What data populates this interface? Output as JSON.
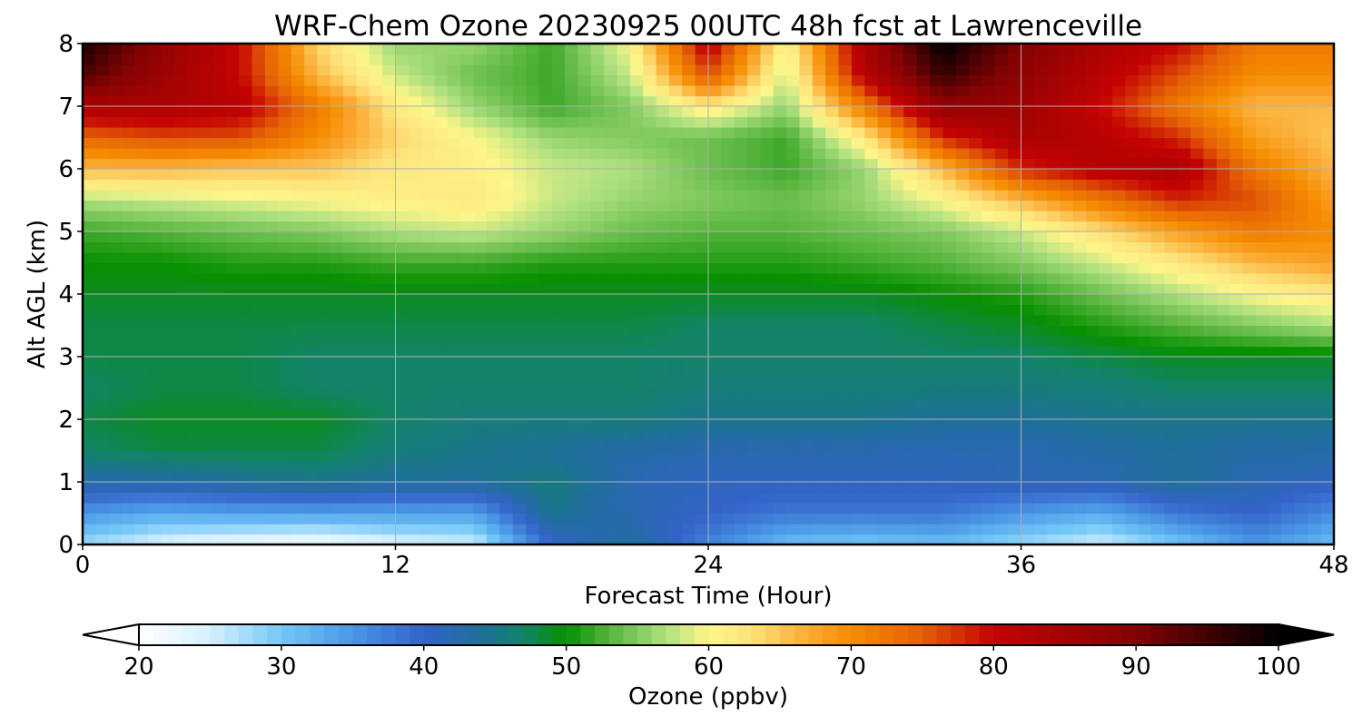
{
  "chart_data": {
    "type": "heatmap",
    "title": "WRF-Chem Ozone  20230925 00UTC 48h fcst at Lawrenceville",
    "xlabel": "Forecast Time (Hour)",
    "ylabel": "Alt AGL (km)",
    "xlim": [
      0,
      48
    ],
    "ylim": [
      0,
      8
    ],
    "xticks": [
      "0",
      "12",
      "24",
      "36",
      "48"
    ],
    "yticks": [
      "0",
      "1",
      "2",
      "3",
      "4",
      "5",
      "6",
      "7",
      "8"
    ],
    "grid": true,
    "x": [
      0,
      3,
      6,
      9,
      12,
      15,
      18,
      21,
      24,
      27,
      30,
      33,
      36,
      39,
      42,
      45,
      48
    ],
    "y": [
      0,
      0.5,
      1,
      1.5,
      2,
      2.5,
      3,
      3.5,
      4,
      4.5,
      5,
      5.5,
      6,
      6.5,
      7,
      7.5,
      8
    ],
    "z": [
      [
        28,
        24,
        22,
        21,
        24,
        25,
        40,
        44,
        37,
        31,
        30,
        31,
        28,
        25,
        30,
        35,
        31
      ],
      [
        35,
        33,
        34,
        34,
        34,
        34,
        45,
        42,
        40,
        38,
        38,
        38,
        35,
        33,
        38,
        40,
        36
      ],
      [
        43,
        43,
        44,
        45,
        44,
        44,
        46,
        42,
        41,
        41,
        41,
        41,
        42,
        42,
        44,
        42,
        41
      ],
      [
        47,
        48,
        48,
        48,
        46,
        45,
        44,
        43,
        42,
        42,
        42,
        42,
        42,
        43,
        44,
        43,
        43
      ],
      [
        48,
        49,
        49,
        49,
        47,
        46,
        46,
        46,
        45,
        45,
        45,
        44,
        44,
        45,
        45,
        45,
        45
      ],
      [
        47,
        48,
        48,
        47,
        47,
        47,
        47,
        47,
        46,
        46,
        46,
        46,
        46,
        46,
        47,
        47,
        47
      ],
      [
        48,
        48,
        48,
        47,
        47,
        47,
        47,
        47,
        47,
        47,
        47,
        47,
        47,
        48,
        49,
        49,
        49
      ],
      [
        48,
        48,
        48,
        48,
        48,
        48,
        48,
        48,
        47,
        47,
        47,
        48,
        49,
        51,
        53,
        55,
        57
      ],
      [
        49,
        49,
        49,
        49,
        49,
        49,
        49,
        49,
        49,
        49,
        49,
        50,
        51,
        54,
        57,
        60,
        62
      ],
      [
        50,
        50,
        51,
        51,
        52,
        52,
        51,
        51,
        51,
        51,
        52,
        53,
        55,
        58,
        62,
        66,
        68
      ],
      [
        52,
        53,
        54,
        55,
        57,
        58,
        56,
        54,
        53,
        53,
        54,
        55,
        58,
        63,
        68,
        72,
        70
      ],
      [
        57,
        58,
        59,
        60,
        61,
        62,
        58,
        56,
        55,
        54,
        56,
        60,
        66,
        72,
        78,
        76,
        68
      ],
      [
        66,
        66,
        65,
        65,
        62,
        61,
        58,
        57,
        54,
        52,
        56,
        66,
        78,
        82,
        84,
        72,
        66
      ],
      [
        74,
        76,
        76,
        70,
        64,
        60,
        56,
        55,
        54,
        52,
        62,
        78,
        84,
        82,
        78,
        68,
        65
      ],
      [
        84,
        84,
        82,
        72,
        62,
        56,
        52,
        55,
        62,
        56,
        72,
        88,
        86,
        80,
        72,
        66,
        66
      ],
      [
        94,
        86,
        80,
        66,
        58,
        54,
        52,
        58,
        76,
        58,
        82,
        96,
        88,
        82,
        76,
        70,
        70
      ],
      [
        98,
        88,
        80,
        64,
        56,
        56,
        52,
        60,
        82,
        60,
        84,
        100,
        90,
        84,
        80,
        72,
        72
      ]
    ],
    "colorbar": {
      "label": "Ozone  (ppbv)",
      "ticks": [
        "20",
        "30",
        "40",
        "50",
        "60",
        "70",
        "80",
        "90",
        "100"
      ],
      "min": 20,
      "max": 100,
      "extend": "both",
      "stops": [
        [
          20,
          "#ffffff"
        ],
        [
          25,
          "#d6f0ff"
        ],
        [
          30,
          "#73c7f7"
        ],
        [
          35,
          "#4a97e6"
        ],
        [
          40,
          "#3463c9"
        ],
        [
          44,
          "#1f6f9b"
        ],
        [
          47,
          "#13836a"
        ],
        [
          50,
          "#079000"
        ],
        [
          53,
          "#56b43d"
        ],
        [
          57,
          "#aee07f"
        ],
        [
          60,
          "#fdf68a"
        ],
        [
          63,
          "#fde27a"
        ],
        [
          67,
          "#fbaa33"
        ],
        [
          70,
          "#f58c00"
        ],
        [
          75,
          "#e45f06"
        ],
        [
          80,
          "#c40303"
        ],
        [
          90,
          "#830303"
        ],
        [
          100,
          "#000000"
        ]
      ]
    }
  }
}
